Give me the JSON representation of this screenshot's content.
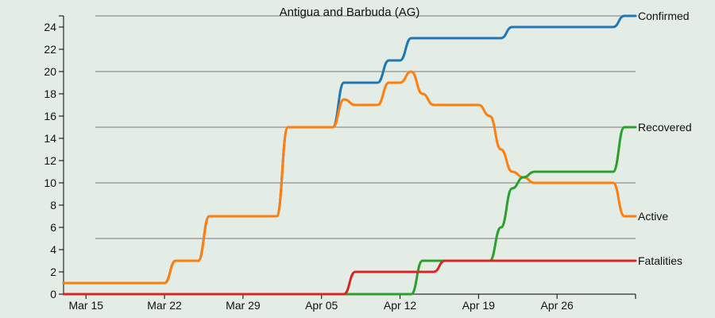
{
  "chart_data": {
    "type": "line",
    "title": "Antigua and Barbuda (AG)",
    "xlabel": "",
    "ylabel": "",
    "x_start": "2020-03-13",
    "x_end": "2020-05-03",
    "ylim": [
      0,
      25
    ],
    "x_ticks": [
      {
        "date": "2020-03-15",
        "label": "Mar 15"
      },
      {
        "date": "2020-03-22",
        "label": "Mar 22"
      },
      {
        "date": "2020-03-29",
        "label": "Mar 29"
      },
      {
        "date": "2020-04-05",
        "label": "Apr 05"
      },
      {
        "date": "2020-04-12",
        "label": "Apr 12"
      },
      {
        "date": "2020-04-19",
        "label": "Apr 19"
      },
      {
        "date": "2020-04-26",
        "label": "Apr 26"
      }
    ],
    "y_ticks": [
      0,
      2,
      4,
      6,
      8,
      10,
      12,
      14,
      16,
      18,
      20,
      22,
      24
    ],
    "grid": true,
    "grid_lines_y": [
      5,
      10,
      15,
      20,
      25
    ],
    "legend": "end-labels",
    "series": [
      {
        "name": "Confirmed",
        "color": "#1f77b4",
        "points": [
          [
            "2020-03-13",
            1
          ],
          [
            "2020-03-21",
            1
          ],
          [
            "2020-03-22",
            1
          ],
          [
            "2020-03-23",
            3
          ],
          [
            "2020-03-24",
            3
          ],
          [
            "2020-03-25",
            3
          ],
          [
            "2020-03-26",
            7
          ],
          [
            "2020-03-30",
            7
          ],
          [
            "2020-03-31",
            7
          ],
          [
            "2020-04-01",
            7
          ],
          [
            "2020-04-02",
            15
          ],
          [
            "2020-04-05",
            15
          ],
          [
            "2020-04-06",
            15
          ],
          [
            "2020-04-07",
            19
          ],
          [
            "2020-04-09",
            19
          ],
          [
            "2020-04-10",
            19
          ],
          [
            "2020-04-11",
            21
          ],
          [
            "2020-04-12",
            21
          ],
          [
            "2020-04-13",
            23
          ],
          [
            "2020-04-20",
            23
          ],
          [
            "2020-04-21",
            23
          ],
          [
            "2020-04-22",
            24
          ],
          [
            "2020-05-01",
            24
          ],
          [
            "2020-05-02",
            25
          ],
          [
            "2020-05-03",
            25
          ]
        ]
      },
      {
        "name": "Active",
        "color": "#ff7f0e",
        "points": [
          [
            "2020-03-13",
            1
          ],
          [
            "2020-03-21",
            1
          ],
          [
            "2020-03-22",
            1
          ],
          [
            "2020-03-23",
            3
          ],
          [
            "2020-03-24",
            3
          ],
          [
            "2020-03-25",
            3
          ],
          [
            "2020-03-26",
            7
          ],
          [
            "2020-03-30",
            7
          ],
          [
            "2020-03-31",
            7
          ],
          [
            "2020-04-01",
            7
          ],
          [
            "2020-04-02",
            15
          ],
          [
            "2020-04-05",
            15
          ],
          [
            "2020-04-06",
            15
          ],
          [
            "2020-04-07",
            17.5
          ],
          [
            "2020-04-08",
            17
          ],
          [
            "2020-04-09",
            17
          ],
          [
            "2020-04-10",
            17
          ],
          [
            "2020-04-11",
            19
          ],
          [
            "2020-04-12",
            19
          ],
          [
            "2020-04-13",
            20
          ],
          [
            "2020-04-14",
            18
          ],
          [
            "2020-04-15",
            17
          ],
          [
            "2020-04-16",
            17
          ],
          [
            "2020-04-19",
            17
          ],
          [
            "2020-04-20",
            16
          ],
          [
            "2020-04-21",
            13
          ],
          [
            "2020-04-22",
            11
          ],
          [
            "2020-04-23",
            10.5
          ],
          [
            "2020-04-24",
            10
          ],
          [
            "2020-05-01",
            10
          ],
          [
            "2020-05-02",
            7
          ],
          [
            "2020-05-03",
            7
          ]
        ]
      },
      {
        "name": "Recovered",
        "color": "#2ca02c",
        "points": [
          [
            "2020-03-13",
            0
          ],
          [
            "2020-04-12",
            0
          ],
          [
            "2020-04-13",
            0
          ],
          [
            "2020-04-14",
            3
          ],
          [
            "2020-04-19",
            3
          ],
          [
            "2020-04-20",
            3
          ],
          [
            "2020-04-21",
            6
          ],
          [
            "2020-04-22",
            9.5
          ],
          [
            "2020-04-23",
            10.5
          ],
          [
            "2020-04-24",
            11
          ],
          [
            "2020-05-01",
            11
          ],
          [
            "2020-05-02",
            15
          ],
          [
            "2020-05-03",
            15
          ]
        ]
      },
      {
        "name": "Fatalities",
        "color": "#d62728",
        "points": [
          [
            "2020-03-13",
            0
          ],
          [
            "2020-04-06",
            0
          ],
          [
            "2020-04-07",
            0
          ],
          [
            "2020-04-08",
            2
          ],
          [
            "2020-04-14",
            2
          ],
          [
            "2020-04-15",
            2
          ],
          [
            "2020-04-16",
            3
          ],
          [
            "2020-05-03",
            3
          ]
        ]
      }
    ]
  }
}
